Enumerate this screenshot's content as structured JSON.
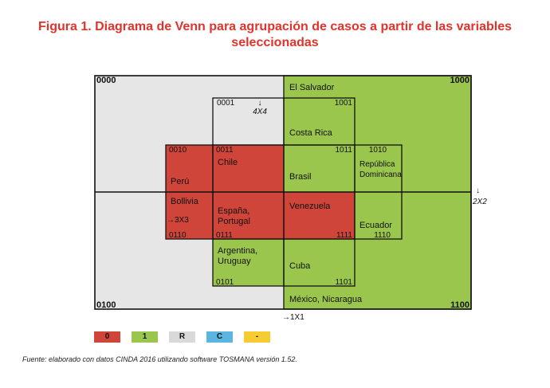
{
  "title": {
    "line1": "Figura 1. Diagrama de Venn para agrupación de casos a partir de las variables",
    "line2": "seleccionadas"
  },
  "colors": {
    "red": "#d0453a",
    "green": "#9bc64e",
    "grey": "#e6e6e6",
    "blue": "#5ab6e0",
    "yellow": "#f7cc33",
    "title": "#e0332b"
  },
  "corners": {
    "tl": "0000",
    "tr": "1000",
    "bl": "0100",
    "br": "1100"
  },
  "codes": {
    "c0001": "0001",
    "c1001": "1001",
    "c0010": "0010",
    "c0011": "0011",
    "c1011": "1011",
    "c1010": "1010",
    "c0110": "0110",
    "c0111": "0111",
    "c1111": "1111",
    "c1110": "1110",
    "c0101": "0101",
    "c1101": "1101"
  },
  "cases": {
    "el_salvador": "El Salvador",
    "costa_rica": "Costa Rica",
    "chile": "Chile",
    "peru": "Perú",
    "brasil": "Brasil",
    "rep_dom_1": "República",
    "rep_dom_2": "Dominicana",
    "bolivia": "Bollivia",
    "espana_1": "España,",
    "espana_2": "Portugal",
    "venezuela": "Venezuela",
    "ecuador": "Ecuador",
    "argentina_1": "Argentina,",
    "argentina_2": "Uruguay",
    "cuba": "Cuba",
    "mexico": "México, Nicaragua"
  },
  "axes": {
    "x4": "4X4",
    "x3": "→3X3",
    "x2": "2X2",
    "x1": "→1X1",
    "down_arrow": "↓"
  },
  "legend": [
    {
      "label": "0",
      "color": "#d0453a"
    },
    {
      "label": "1",
      "color": "#9bc64e"
    },
    {
      "label": "R",
      "color": "#d9d9d9"
    },
    {
      "label": "C",
      "color": "#5ab6e0"
    },
    {
      "label": "-",
      "color": "#f7cc33"
    }
  ],
  "source": "Fuente: elaborado con datos CINDA 2016 utilizando software TOSMANA versión 1.52."
}
